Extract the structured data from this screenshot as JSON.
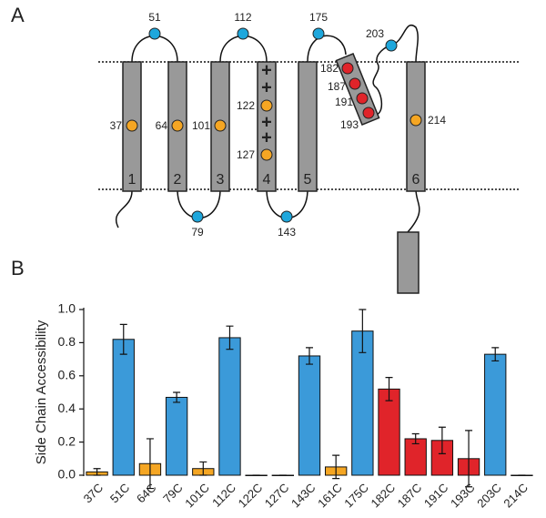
{
  "panel_labels": [
    "A",
    "B"
  ],
  "diagram": {
    "helices": [
      "1",
      "2",
      "3",
      "4",
      "5",
      "6"
    ],
    "residues": [
      51,
      112,
      175,
      203,
      79,
      143,
      37,
      64,
      101,
      122,
      127,
      214,
      182,
      187,
      191,
      193
    ],
    "charges": [
      "+",
      "+",
      "+",
      "+"
    ]
  },
  "chart_data": {
    "type": "bar",
    "ylabel": "Side Chain Accessibility",
    "categories": [
      "37C",
      "51C",
      "64C",
      "79C",
      "101C",
      "112C",
      "122C",
      "127C",
      "143C",
      "161C",
      "175C",
      "182C",
      "187C",
      "191C",
      "193C",
      "203C",
      "214C"
    ],
    "values": [
      0.02,
      0.82,
      0.07,
      0.47,
      0.04,
      0.83,
      0.0,
      0.0,
      0.72,
      0.05,
      0.87,
      0.52,
      0.22,
      0.21,
      0.1,
      0.73,
      0.0
    ],
    "errors": [
      0.02,
      0.09,
      0.15,
      0.03,
      0.04,
      0.07,
      0,
      0,
      0.05,
      0.07,
      0.13,
      0.07,
      0.03,
      0.08,
      0.17,
      0.04,
      0
    ],
    "colors": [
      "#f5a623",
      "#3b9ad9",
      "#f5a623",
      "#3b9ad9",
      "#f5a623",
      "#3b9ad9",
      "#f5a623",
      "#f5a623",
      "#3b9ad9",
      "#f5a623",
      "#3b9ad9",
      "#e0242a",
      "#e0242a",
      "#e0242a",
      "#e0242a",
      "#3b9ad9",
      "#f5a623"
    ],
    "ylim": [
      0,
      1.0
    ],
    "yticks": [
      {
        "value": 0,
        "label": "0.0"
      },
      0.2,
      0.4,
      0.6,
      0.8,
      {
        "value": 1,
        "label": "1.0"
      }
    ]
  }
}
